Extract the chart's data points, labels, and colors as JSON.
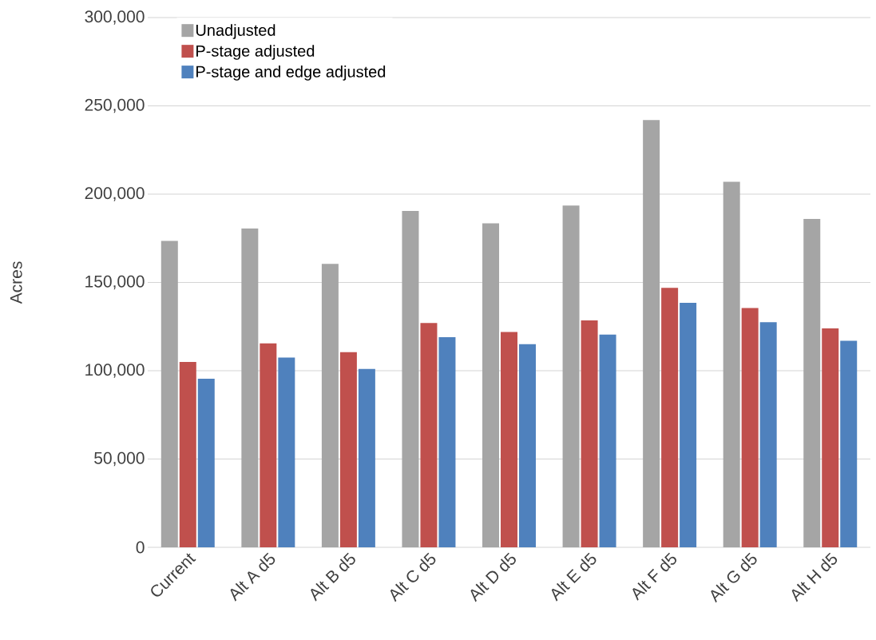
{
  "chart_data": {
    "type": "bar",
    "ylabel": "Acres",
    "categories": [
      "Current",
      "Alt A d5",
      "Alt B d5",
      "Alt C d5",
      "Alt D d5",
      "Alt E d5",
      "Alt F d5",
      "Alt G d5",
      "Alt H d5"
    ],
    "series": [
      {
        "name": "Unadjusted",
        "color": "#a5a5a5",
        "values": [
          173500,
          180500,
          160500,
          190500,
          183500,
          193500,
          242000,
          207000,
          186000
        ]
      },
      {
        "name": "P-stage adjusted",
        "color": "#c0504d",
        "values": [
          105000,
          115500,
          110500,
          127000,
          122000,
          128500,
          147000,
          135500,
          124000
        ]
      },
      {
        "name": "P-stage and edge adjusted",
        "color": "#4f81bd",
        "values": [
          95500,
          107500,
          101000,
          119000,
          115000,
          120500,
          138500,
          127500,
          117000
        ]
      }
    ],
    "ylim": [
      0,
      300000
    ],
    "yticks": [
      {
        "value": 0,
        "label": "0"
      },
      {
        "value": 50000,
        "label": "50,000"
      },
      {
        "value": 100000,
        "label": "100,000"
      },
      {
        "value": 150000,
        "label": "150,000"
      },
      {
        "value": 200000,
        "label": "200,000"
      },
      {
        "value": 250000,
        "label": "250,000"
      },
      {
        "value": 300000,
        "label": "300,000"
      }
    ],
    "grid": "y",
    "legend": "top left"
  }
}
